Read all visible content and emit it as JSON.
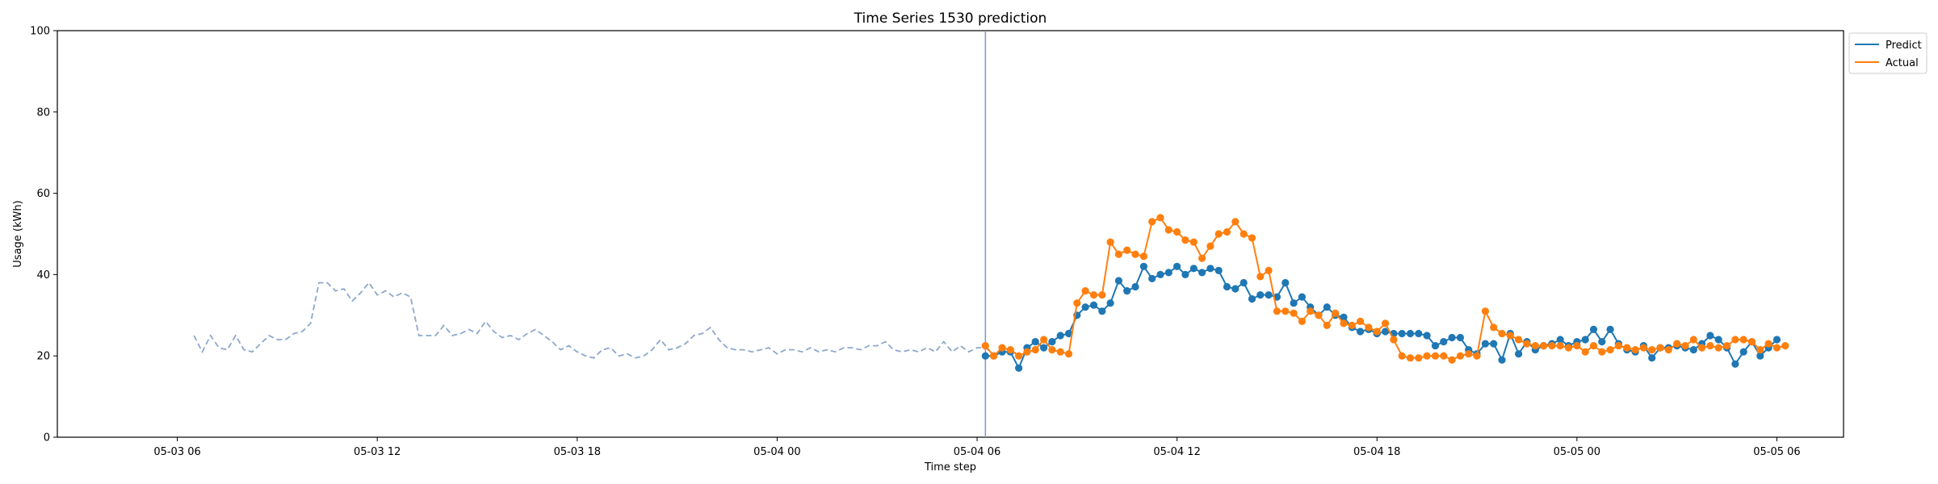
{
  "chart_data": {
    "type": "line",
    "title": "Time Series 1530 prediction",
    "xlabel": "Time step",
    "ylabel": "Usage (kWh)",
    "ylim": [
      0,
      100
    ],
    "yticks": [
      0,
      20,
      40,
      60,
      80,
      100
    ],
    "x_axis": {
      "unit": "hours",
      "range_hours": [
        -3.6,
        50.0
      ],
      "tick_labels": [
        "05-03 06",
        "05-03 12",
        "05-03 18",
        "05-04 00",
        "05-04 06",
        "05-04 12",
        "05-04 18",
        "05-05 00",
        "05-05 06"
      ],
      "tick_hours": [
        0,
        6,
        12,
        18,
        24,
        30,
        36,
        42,
        48
      ]
    },
    "history": {
      "name": "",
      "color": "#8da8cc",
      "style": "dashed",
      "start_label": "05-03 06:30",
      "step_minutes": 15,
      "values": [
        25.0,
        21.0,
        25.0,
        22.0,
        21.5,
        25.0,
        21.5,
        21.0,
        23.0,
        25.0,
        24.0,
        24.0,
        25.5,
        26.0,
        28.0,
        38.0,
        38.0,
        36.0,
        36.5,
        33.5,
        35.5,
        38.0,
        35.0,
        36.0,
        34.5,
        35.5,
        34.5,
        25.0,
        25.0,
        25.0,
        27.5,
        25.0,
        25.5,
        26.5,
        25.5,
        28.5,
        26.0,
        24.5,
        25.0,
        24.0,
        25.5,
        26.5,
        25.0,
        23.5,
        21.5,
        22.5,
        21.0,
        20.0,
        19.5,
        21.5,
        22.0,
        20.0,
        20.5,
        19.5,
        20.0,
        21.5,
        24.0,
        21.5,
        22.0,
        23.0,
        25.0,
        25.5,
        27.0,
        24.0,
        22.0,
        21.5,
        21.5,
        21.0,
        21.5,
        22.0,
        20.5,
        21.5,
        21.5,
        21.0,
        22.0,
        21.0,
        21.5,
        21.0,
        22.0,
        22.0,
        21.5,
        22.5,
        22.5,
        23.5,
        21.5,
        21.0,
        21.5,
        21.0,
        22.0,
        21.0,
        23.5,
        21.0,
        22.5,
        21.0,
        22.0,
        22.0,
        20.5
      ]
    },
    "forecast_start_label": "05-04 06:15",
    "series": [
      {
        "name": "Predict",
        "color": "#1f77b4",
        "start_label": "05-04 06:15",
        "step_minutes": 15,
        "values": [
          20.0,
          20.0,
          21.0,
          21.0,
          17.0,
          22.0,
          23.5,
          22.0,
          23.5,
          25.0,
          25.5,
          30.0,
          32.0,
          32.5,
          31.0,
          33.0,
          38.5,
          36.0,
          37.0,
          42.0,
          39.0,
          40.0,
          40.5,
          42.0,
          40.0,
          41.5,
          40.5,
          41.5,
          41.0,
          37.0,
          36.5,
          38.0,
          34.0,
          35.0,
          35.0,
          34.5,
          38.0,
          33.0,
          34.5,
          32.0,
          30.0,
          32.0,
          30.0,
          29.5,
          27.0,
          26.0,
          26.5,
          25.5,
          26.0,
          25.5,
          25.5,
          25.5,
          25.5,
          25.0,
          22.5,
          23.5,
          24.5,
          24.5,
          21.5,
          20.5,
          23.0,
          23.0,
          19.0,
          25.5,
          20.5,
          23.5,
          21.5,
          22.5,
          23.0,
          24.0,
          22.5,
          23.5,
          24.0,
          26.5,
          23.5,
          26.5,
          23.0,
          21.5,
          21.0,
          22.5,
          19.5,
          22.0,
          22.0,
          22.5,
          22.0,
          21.5,
          23.0,
          25.0,
          24.0,
          22.0,
          18.0,
          21.0,
          23.5,
          20.0,
          22.0,
          24.0
        ]
      },
      {
        "name": "Actual",
        "color": "#ff7f0e",
        "start_label": "05-04 06:15",
        "step_minutes": 15,
        "values": [
          22.5,
          20.0,
          22.0,
          21.5,
          20.0,
          21.0,
          21.5,
          24.0,
          21.5,
          21.0,
          20.5,
          33.0,
          36.0,
          35.0,
          35.0,
          48.0,
          45.0,
          46.0,
          45.0,
          44.5,
          53.0,
          54.0,
          51.0,
          50.5,
          48.5,
          48.0,
          44.0,
          47.0,
          50.0,
          50.5,
          53.0,
          50.0,
          49.0,
          39.5,
          41.0,
          31.0,
          31.0,
          30.5,
          28.5,
          31.0,
          30.0,
          27.5,
          30.5,
          28.0,
          27.5,
          28.5,
          27.0,
          26.0,
          28.0,
          24.0,
          20.0,
          19.5,
          19.5,
          20.0,
          20.0,
          20.0,
          19.0,
          20.0,
          20.5,
          20.0,
          31.0,
          27.0,
          25.5,
          25.0,
          24.0,
          23.0,
          22.5,
          22.5,
          22.5,
          22.5,
          22.0,
          22.5,
          21.0,
          22.5,
          21.0,
          21.5,
          22.5,
          22.0,
          21.5,
          22.0,
          21.5,
          22.0,
          21.5,
          23.0,
          22.5,
          24.0,
          22.0,
          22.5,
          22.0,
          22.5,
          24.0,
          24.0,
          23.5,
          21.5,
          23.0,
          22.0,
          22.5
        ]
      }
    ],
    "legend": {
      "position": "upper right outside",
      "entries": [
        "Predict",
        "Actual"
      ]
    },
    "grid": false
  }
}
